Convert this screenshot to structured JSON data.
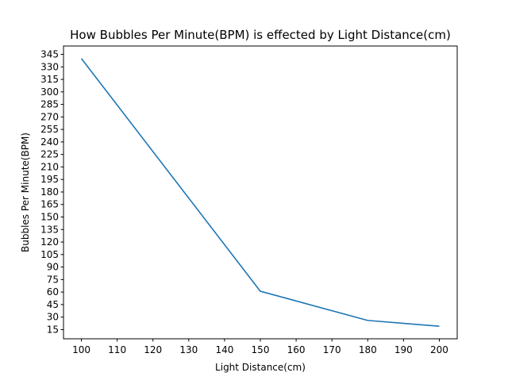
{
  "chart_data": {
    "type": "line",
    "title": "How Bubbles Per Minute(BPM) is effected by Light Distance(cm)",
    "xlabel": "Light Distance(cm)",
    "ylabel": "Bubbles Per Minute(BPM)",
    "xlim": [
      95,
      205
    ],
    "ylim": [
      4,
      355
    ],
    "xticks": [
      100,
      110,
      120,
      130,
      140,
      150,
      160,
      170,
      180,
      190,
      200
    ],
    "yticks": [
      15,
      30,
      45,
      60,
      75,
      90,
      105,
      120,
      135,
      150,
      165,
      180,
      195,
      210,
      225,
      240,
      255,
      270,
      285,
      300,
      315,
      330,
      345
    ],
    "grid": false,
    "series": [
      {
        "color": "#1f77b4",
        "x": [
          100,
          150,
          180,
          200
        ],
        "y": [
          340,
          61,
          26,
          19
        ]
      }
    ]
  }
}
